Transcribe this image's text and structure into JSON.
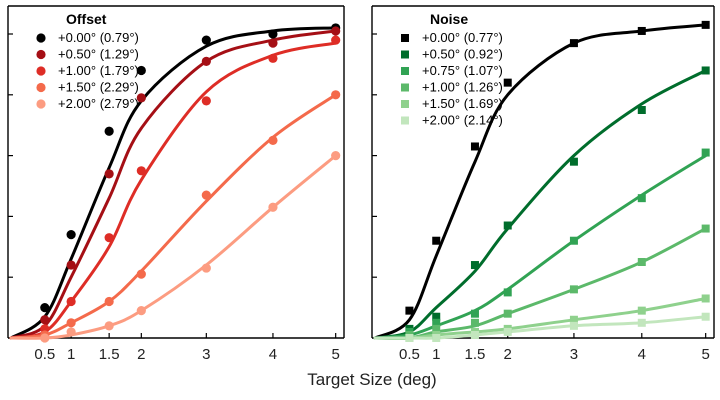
{
  "figure": {
    "xlabel": "Target Size (deg)"
  },
  "chart_data": [
    {
      "type": "line",
      "title": "Offset",
      "xlabel": "Target Size (deg)",
      "ylabel": "",
      "xlim": [
        0,
        5
      ],
      "ylim": [
        0,
        1
      ],
      "xticks": [
        0.5,
        1,
        1.5,
        2,
        3,
        4,
        5
      ],
      "xtick_labels": [
        "0.5",
        "1",
        "1.5",
        "2",
        "3",
        "4",
        "5"
      ],
      "yticks": [
        0,
        0.2,
        0.4,
        0.6,
        0.8,
        1.0
      ],
      "marker": "circle",
      "legend_position": "top-left",
      "x": [
        0.5,
        1,
        1.5,
        2,
        3,
        4,
        5
      ],
      "series": [
        {
          "name": "+0.00° (0.79°)",
          "color": "#000000",
          "values": [
            0.1,
            0.34,
            0.68,
            0.88,
            0.98,
            1.0,
            1.02
          ],
          "fit": [
            0.07,
            0.26,
            0.56,
            0.78,
            0.96,
            1.01,
            1.02
          ]
        },
        {
          "name": "+0.50° (1.29°)",
          "color": "#a50f15",
          "values": [
            0.06,
            0.24,
            0.54,
            0.79,
            0.91,
            0.97,
            1.01
          ],
          "fit": [
            0.04,
            0.2,
            0.46,
            0.69,
            0.91,
            0.98,
            1.01
          ]
        },
        {
          "name": "+1.00° (1.79°)",
          "color": "#de2d26",
          "values": [
            0.03,
            0.12,
            0.33,
            0.55,
            0.78,
            0.92,
            0.98
          ],
          "fit": [
            0.02,
            0.12,
            0.3,
            0.52,
            0.81,
            0.93,
            0.97
          ]
        },
        {
          "name": "+1.50° (2.29°)",
          "color": "#f46a4b",
          "values": [
            0.01,
            0.05,
            0.12,
            0.21,
            0.47,
            0.65,
            0.8
          ],
          "fit": [
            0.01,
            0.05,
            0.12,
            0.22,
            0.45,
            0.66,
            0.8
          ]
        },
        {
          "name": "+2.00° (2.79°)",
          "color": "#fc9c81",
          "values": [
            0.0,
            0.02,
            0.04,
            0.09,
            0.23,
            0.43,
            0.6
          ],
          "fit": [
            0.0,
            0.01,
            0.04,
            0.09,
            0.24,
            0.43,
            0.6
          ]
        }
      ]
    },
    {
      "type": "line",
      "title": "Noise",
      "xlabel": "Target Size (deg)",
      "ylabel": "",
      "xlim": [
        0,
        5
      ],
      "ylim": [
        0,
        1
      ],
      "xticks": [
        0.5,
        1,
        1.5,
        2,
        3,
        4,
        5
      ],
      "xtick_labels": [
        "0.5",
        "1",
        "1.5",
        "2",
        "3",
        "4",
        "5"
      ],
      "yticks": [
        0,
        0.2,
        0.4,
        0.6,
        0.8,
        1.0
      ],
      "marker": "square",
      "legend_position": "top-left",
      "x": [
        0.5,
        1,
        1.5,
        2,
        3,
        4,
        5
      ],
      "series": [
        {
          "name": "+0.00° (0.77°)",
          "color": "#000000",
          "values": [
            0.09,
            0.32,
            0.63,
            0.84,
            0.97,
            1.01,
            1.03
          ],
          "fit": [
            0.06,
            0.27,
            0.58,
            0.8,
            0.97,
            1.01,
            1.03
          ]
        },
        {
          "name": "+0.50° (0.92°)",
          "color": "#006d2c",
          "values": [
            0.03,
            0.07,
            0.24,
            0.37,
            0.58,
            0.75,
            0.88
          ],
          "fit": [
            0.02,
            0.1,
            0.22,
            0.36,
            0.6,
            0.77,
            0.88
          ]
        },
        {
          "name": "+0.75° (1.07°)",
          "color": "#31a354",
          "values": [
            0.02,
            0.05,
            0.08,
            0.15,
            0.32,
            0.46,
            0.61
          ],
          "fit": [
            0.01,
            0.04,
            0.09,
            0.16,
            0.32,
            0.47,
            0.6
          ]
        },
        {
          "name": "+1.00° (1.26°)",
          "color": "#5cb96a",
          "values": [
            0.01,
            0.03,
            0.05,
            0.08,
            0.16,
            0.25,
            0.36
          ],
          "fit": [
            0.0,
            0.02,
            0.04,
            0.08,
            0.16,
            0.25,
            0.36
          ]
        },
        {
          "name": "+1.50° (1.69°)",
          "color": "#8fd18d",
          "values": [
            0.0,
            0.01,
            0.02,
            0.03,
            0.06,
            0.09,
            0.13
          ],
          "fit": [
            0.0,
            0.01,
            0.02,
            0.03,
            0.06,
            0.09,
            0.13
          ]
        },
        {
          "name": "+2.00° (2.14°)",
          "color": "#c2e6bd",
          "values": [
            0.0,
            0.0,
            0.01,
            0.02,
            0.04,
            0.05,
            0.07
          ],
          "fit": [
            0.0,
            0.0,
            0.01,
            0.02,
            0.04,
            0.05,
            0.07
          ]
        }
      ]
    }
  ]
}
